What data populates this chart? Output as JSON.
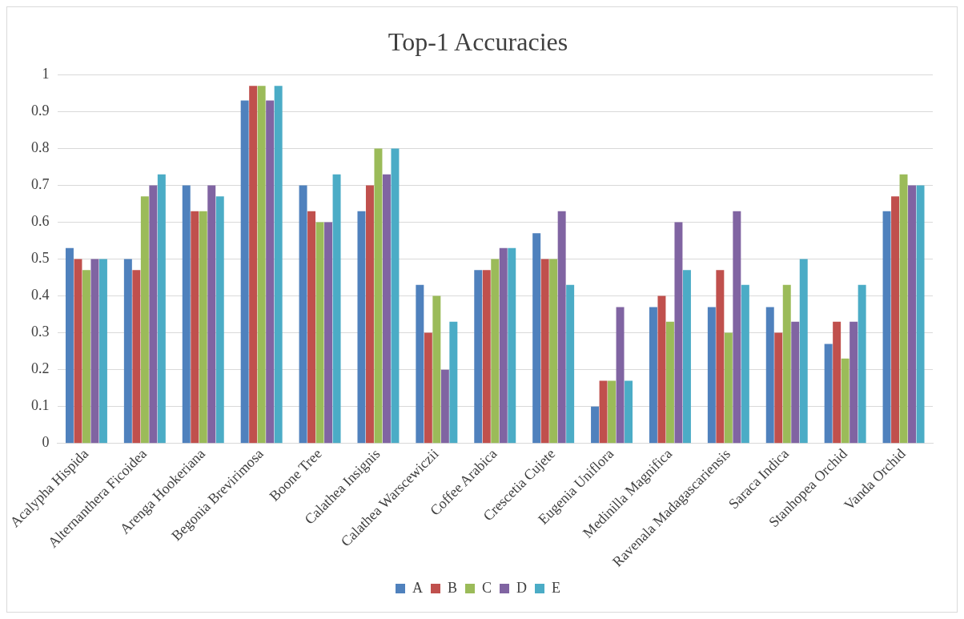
{
  "chart_data": {
    "type": "bar",
    "title": "Top-1 Accuracies",
    "categories": [
      "Acalypha Hispida",
      "Alternanthera Ficoidea",
      "Arenga Hookeriana",
      "Begonia Brevirimosa",
      "Boone Tree",
      "Calathea Insignis",
      "Calathea Warscewiczii",
      "Coffee Arabica",
      "Crescetia Cujete",
      "Eugenia Uniflora",
      "Medinilla Magnifica",
      "Ravenala Madagascariensis",
      "Saraca Indica",
      "Stanhopea Orchid",
      "Vanda Orchid"
    ],
    "series": [
      {
        "name": "A",
        "color": "#4f81bd",
        "values": [
          0.53,
          0.5,
          0.7,
          0.93,
          0.7,
          0.63,
          0.43,
          0.47,
          0.57,
          0.1,
          0.37,
          0.37,
          0.37,
          0.27,
          0.63
        ]
      },
      {
        "name": "B",
        "color": "#c0504d",
        "values": [
          0.5,
          0.47,
          0.63,
          0.97,
          0.63,
          0.7,
          0.3,
          0.47,
          0.5,
          0.17,
          0.4,
          0.47,
          0.3,
          0.33,
          0.67
        ]
      },
      {
        "name": "C",
        "color": "#9bbb59",
        "values": [
          0.47,
          0.67,
          0.63,
          0.97,
          0.6,
          0.8,
          0.4,
          0.5,
          0.5,
          0.17,
          0.33,
          0.3,
          0.43,
          0.23,
          0.73
        ]
      },
      {
        "name": "D",
        "color": "#8064a2",
        "values": [
          0.5,
          0.7,
          0.7,
          0.93,
          0.6,
          0.73,
          0.2,
          0.53,
          0.63,
          0.37,
          0.6,
          0.63,
          0.33,
          0.33,
          0.7
        ]
      },
      {
        "name": "E",
        "color": "#4bacc6",
        "values": [
          0.5,
          0.73,
          0.67,
          0.97,
          0.73,
          0.8,
          0.33,
          0.53,
          0.43,
          0.17,
          0.47,
          0.43,
          0.5,
          0.43,
          0.7
        ]
      }
    ],
    "ylim": [
      0,
      1
    ],
    "yticks": [
      0,
      0.1,
      0.2,
      0.3,
      0.4,
      0.5,
      0.6,
      0.7,
      0.8,
      0.9,
      1
    ],
    "grid": "y",
    "legend": "bottom"
  }
}
